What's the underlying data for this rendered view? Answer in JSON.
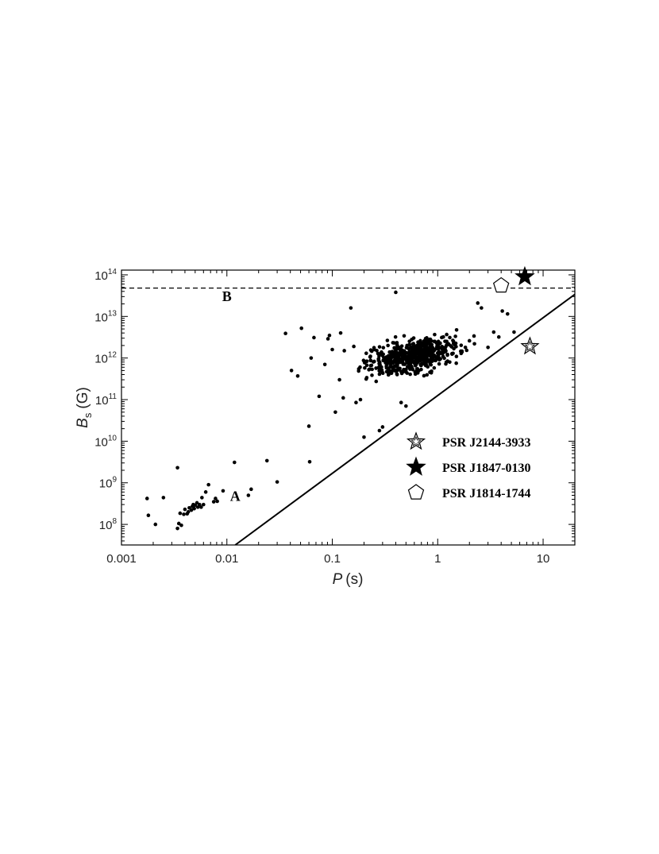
{
  "chart_data": {
    "type": "scatter",
    "xlabel_var": "P",
    "xlabel_unit": "(s)",
    "ylabel_var": "B",
    "ylabel_sub": "s",
    "ylabel_unit": "(G)",
    "xscale": "log",
    "yscale": "log",
    "xlim": [
      0.001,
      20
    ],
    "ylim": [
      32000000.0,
      130000000000000.0
    ],
    "grid": false,
    "legend_position": "lower-right",
    "x_ticks": [
      {
        "value": 0.001,
        "label": "0.001"
      },
      {
        "value": 0.01,
        "label": "0.01"
      },
      {
        "value": 0.1,
        "label": "0.1"
      },
      {
        "value": 1,
        "label": "1"
      },
      {
        "value": 10,
        "label": "10"
      }
    ],
    "y_ticks": [
      {
        "value": 100000000.0,
        "base": "10",
        "exp": "8"
      },
      {
        "value": 1000000000.0,
        "base": "10",
        "exp": "9"
      },
      {
        "value": 10000000000.0,
        "base": "10",
        "exp": "10"
      },
      {
        "value": 100000000000.0,
        "base": "10",
        "exp": "11"
      },
      {
        "value": 1000000000000.0,
        "base": "10",
        "exp": "12"
      },
      {
        "value": 10000000000000.0,
        "base": "10",
        "exp": "13"
      },
      {
        "value": 100000000000000.0,
        "base": "10",
        "exp": "14"
      }
    ],
    "lines": [
      {
        "label": "A",
        "style": "solid",
        "points": [
          [
            0.012,
            32000000.0
          ],
          [
            20,
            34000000000000.0
          ]
        ],
        "label_at": [
          0.012,
          370000000.0
        ]
      },
      {
        "label": "B",
        "style": "dashed",
        "points": [
          [
            0.001,
            48000000000000.0
          ],
          [
            20,
            48000000000000.0
          ]
        ],
        "label_at": [
          0.01,
          23500000000000.0
        ]
      }
    ],
    "pulsars_points": [
      [
        0.00175,
        420000000.0
      ],
      [
        0.0018,
        165000000.0
      ],
      [
        0.0021,
        100000000.0
      ],
      [
        0.0025,
        440000000.0
      ],
      [
        0.0034,
        2300000000.0
      ],
      [
        0.0034,
        80000000.0
      ],
      [
        0.0035,
        105000000.0
      ],
      [
        0.0036,
        185000000.0
      ],
      [
        0.0037,
        95000000.0
      ],
      [
        0.0039,
        175000000.0
      ],
      [
        0.004,
        230000000.0
      ],
      [
        0.0042,
        180000000.0
      ],
      [
        0.0043,
        200000000.0
      ],
      [
        0.0044,
        250000000.0
      ],
      [
        0.0046,
        220000000.0
      ],
      [
        0.0047,
        270000000.0
      ],
      [
        0.0048,
        300000000.0
      ],
      [
        0.0049,
        240000000.0
      ],
      [
        0.005,
        290000000.0
      ],
      [
        0.0052,
        330000000.0
      ],
      [
        0.0053,
        260000000.0
      ],
      [
        0.0055,
        300000000.0
      ],
      [
        0.0057,
        260000000.0
      ],
      [
        0.0058,
        440000000.0
      ],
      [
        0.006,
        300000000.0
      ],
      [
        0.0063,
        600000000.0
      ],
      [
        0.0067,
        900000000.0
      ],
      [
        0.0075,
        350000000.0
      ],
      [
        0.0078,
        420000000.0
      ],
      [
        0.0081,
        360000000.0
      ],
      [
        0.0092,
        640000000.0
      ],
      [
        0.0118,
        3100000000.0
      ],
      [
        0.016,
        500000000.0
      ],
      [
        0.017,
        700000000.0
      ],
      [
        0.024,
        3400000000.0
      ],
      [
        0.03,
        1050000000.0
      ],
      [
        0.036,
        3900000000000.0
      ],
      [
        0.041,
        500000000000.0
      ],
      [
        0.047,
        370000000000.0
      ],
      [
        0.051,
        5200000000000.0
      ],
      [
        0.06,
        23000000000.0
      ],
      [
        0.061,
        3200000000.0
      ],
      [
        0.063,
        1000000000000.0
      ],
      [
        0.067,
        3100000000000.0
      ],
      [
        0.075,
        120000000000.0
      ],
      [
        0.085,
        700000000000.0
      ],
      [
        0.091,
        2900000000000.0
      ],
      [
        0.094,
        3500000000000.0
      ],
      [
        0.1,
        1600000000000.0
      ],
      [
        0.107,
        50000000000.0
      ],
      [
        0.117,
        300000000000.0
      ],
      [
        0.12,
        4000000000000.0
      ],
      [
        0.127,
        110000000000.0
      ],
      [
        0.13,
        1500000000000.0
      ],
      [
        0.15,
        16000000000000.0
      ],
      [
        0.16,
        1900000000000.0
      ],
      [
        0.168,
        85000000000.0
      ],
      [
        0.185,
        100000000000.0
      ],
      [
        0.2,
        12500000000.0
      ],
      [
        0.21,
        1300000000000.0
      ],
      [
        0.23,
        1100000000000.0
      ],
      [
        0.25,
        1600000000000.0
      ],
      [
        0.28,
        18000000000.0
      ],
      [
        0.3,
        22000000000.0
      ],
      [
        0.34,
        450000000000.0
      ],
      [
        0.4,
        38000000000000.0
      ],
      [
        0.45,
        85000000000.0
      ],
      [
        0.5,
        70000000000.0
      ],
      [
        0.58,
        1300000000000.0
      ],
      [
        0.65,
        850000000000.0
      ],
      [
        0.78,
        1500000000000.0
      ],
      [
        0.9,
        1100000000000.0
      ],
      [
        1.1,
        1300000000000.0
      ],
      [
        1.3,
        800000000000.0
      ],
      [
        1.5,
        750000000000.0
      ],
      [
        1.7,
        1400000000000.0
      ],
      [
        2.0,
        2600000000000.0
      ],
      [
        2.4,
        21000000000000.0
      ],
      [
        2.6,
        16000000000000.0
      ],
      [
        3.0,
        1800000000000.0
      ],
      [
        3.4,
        4200000000000.0
      ],
      [
        3.8,
        3200000000000.0
      ],
      [
        4.1,
        13500000000000.0
      ],
      [
        4.6,
        11500000000000.0
      ],
      [
        5.3,
        4200000000000.0
      ]
    ],
    "cluster": {
      "center_logP": -0.22,
      "center_logB": 12.05,
      "spread_logP": 0.3,
      "spread_logB": 0.27,
      "count": 560,
      "seed": 7,
      "min_logP": -0.75,
      "max_logP": 0.45,
      "min_logB": 10.9,
      "max_logB": 12.75
    },
    "special_objects": [
      {
        "name": "PSR J2144-3933",
        "marker": "open-star",
        "P": 7.5,
        "B": 1900000000000.0
      },
      {
        "name": "PSR J1847-0130",
        "marker": "filled-star",
        "P": 6.7,
        "B": 90000000000000.0
      },
      {
        "name": "PSR J1814-1744",
        "marker": "open-pentagon",
        "P": 4.0,
        "B": 55000000000000.0
      }
    ]
  }
}
